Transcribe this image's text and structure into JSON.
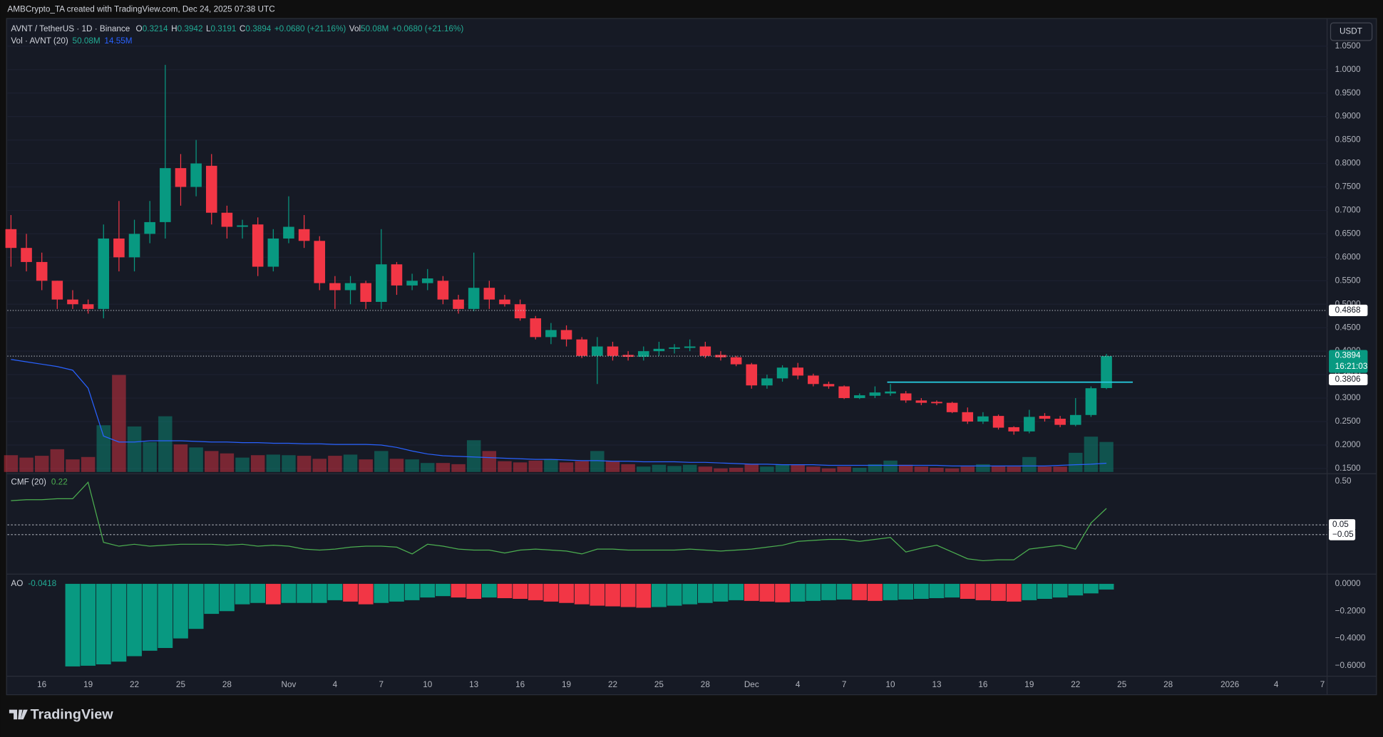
{
  "header": "AMBCrypto_TA created with TradingView.com, Dec 24, 2025 07:38 UTC",
  "brand": "TradingView",
  "currency_button": "USDT",
  "chart_data": {
    "type": "candlestick",
    "title": "AVNT / TetherUS · 1D · Binance",
    "ohlc_letters": [
      "O",
      "H",
      "L",
      "C"
    ],
    "change_label": "+0.0680 (+21.16%)",
    "vol_prefix": "Vol",
    "up_color": "#089981",
    "down_color": "#f23645",
    "x": [
      "2025-10-14",
      "2025-10-15",
      "2025-10-16",
      "2025-10-17",
      "2025-10-18",
      "2025-10-19",
      "2025-10-20",
      "2025-10-21",
      "2025-10-22",
      "2025-10-23",
      "2025-10-24",
      "2025-10-25",
      "2025-10-26",
      "2025-10-27",
      "2025-10-28",
      "2025-10-29",
      "2025-10-30",
      "2025-10-31",
      "2025-11-01",
      "2025-11-02",
      "2025-11-03",
      "2025-11-04",
      "2025-11-05",
      "2025-11-06",
      "2025-11-07",
      "2025-11-08",
      "2025-11-09",
      "2025-11-10",
      "2025-11-11",
      "2025-11-12",
      "2025-11-13",
      "2025-11-14",
      "2025-11-15",
      "2025-11-16",
      "2025-11-17",
      "2025-11-18",
      "2025-11-19",
      "2025-11-20",
      "2025-11-21",
      "2025-11-22",
      "2025-11-23",
      "2025-11-24",
      "2025-11-25",
      "2025-11-26",
      "2025-11-27",
      "2025-11-28",
      "2025-11-29",
      "2025-11-30",
      "2025-12-01",
      "2025-12-02",
      "2025-12-03",
      "2025-12-04",
      "2025-12-05",
      "2025-12-06",
      "2025-12-07",
      "2025-12-08",
      "2025-12-09",
      "2025-12-10",
      "2025-12-11",
      "2025-12-12",
      "2025-12-13",
      "2025-12-14",
      "2025-12-15",
      "2025-12-16",
      "2025-12-17",
      "2025-12-18",
      "2025-12-19",
      "2025-12-20",
      "2025-12-21",
      "2025-12-22",
      "2025-12-23",
      "2025-12-24"
    ],
    "open": [
      0.66,
      0.62,
      0.59,
      0.55,
      0.51,
      0.5,
      0.49,
      0.64,
      0.6,
      0.65,
      0.675,
      0.79,
      0.75,
      0.795,
      0.695,
      0.665,
      0.67,
      0.58,
      0.64,
      0.66,
      0.635,
      0.545,
      0.53,
      0.545,
      0.505,
      0.585,
      0.54,
      0.545,
      0.55,
      0.51,
      0.49,
      0.535,
      0.51,
      0.5,
      0.47,
      0.43,
      0.445,
      0.425,
      0.39,
      0.41,
      0.392,
      0.388,
      0.4,
      0.405,
      0.407,
      0.41,
      0.392,
      0.387,
      0.372,
      0.327,
      0.342,
      0.365,
      0.348,
      0.33,
      0.325,
      0.3,
      0.305,
      0.31,
      0.31,
      0.295,
      0.292,
      0.29,
      0.27,
      0.25,
      0.262,
      0.238,
      0.229,
      0.262,
      0.256,
      0.243,
      0.264,
      0.3214
    ],
    "high": [
      0.69,
      0.65,
      0.61,
      0.55,
      0.53,
      0.51,
      0.67,
      0.72,
      0.68,
      0.72,
      1.01,
      0.82,
      0.85,
      0.82,
      0.71,
      0.68,
      0.685,
      0.66,
      0.73,
      0.69,
      0.645,
      0.56,
      0.56,
      0.55,
      0.66,
      0.59,
      0.565,
      0.575,
      0.56,
      0.52,
      0.61,
      0.55,
      0.52,
      0.51,
      0.475,
      0.46,
      0.455,
      0.43,
      0.43,
      0.42,
      0.4,
      0.41,
      0.42,
      0.415,
      0.425,
      0.42,
      0.4,
      0.39,
      0.375,
      0.35,
      0.37,
      0.375,
      0.352,
      0.335,
      0.327,
      0.31,
      0.325,
      0.33,
      0.315,
      0.3,
      0.295,
      0.292,
      0.28,
      0.27,
      0.265,
      0.24,
      0.275,
      0.268,
      0.262,
      0.3,
      0.325,
      0.3942
    ],
    "low": [
      0.58,
      0.57,
      0.53,
      0.49,
      0.49,
      0.48,
      0.47,
      0.57,
      0.57,
      0.63,
      0.64,
      0.71,
      0.73,
      0.67,
      0.64,
      0.64,
      0.56,
      0.57,
      0.63,
      0.62,
      0.53,
      0.49,
      0.5,
      0.49,
      0.49,
      0.52,
      0.53,
      0.53,
      0.5,
      0.48,
      0.485,
      0.49,
      0.495,
      0.465,
      0.425,
      0.415,
      0.41,
      0.385,
      0.33,
      0.38,
      0.38,
      0.38,
      0.39,
      0.395,
      0.4,
      0.385,
      0.38,
      0.368,
      0.32,
      0.32,
      0.335,
      0.34,
      0.325,
      0.32,
      0.298,
      0.298,
      0.3,
      0.305,
      0.29,
      0.285,
      0.285,
      0.268,
      0.245,
      0.245,
      0.233,
      0.222,
      0.225,
      0.25,
      0.238,
      0.24,
      0.26,
      0.3191
    ],
    "close": [
      0.62,
      0.59,
      0.55,
      0.51,
      0.5,
      0.49,
      0.64,
      0.6,
      0.65,
      0.675,
      0.79,
      0.75,
      0.8,
      0.695,
      0.665,
      0.668,
      0.58,
      0.64,
      0.665,
      0.635,
      0.545,
      0.53,
      0.545,
      0.505,
      0.585,
      0.54,
      0.55,
      0.555,
      0.51,
      0.49,
      0.535,
      0.51,
      0.5,
      0.47,
      0.43,
      0.445,
      0.425,
      0.39,
      0.41,
      0.39,
      0.388,
      0.4,
      0.405,
      0.408,
      0.41,
      0.39,
      0.387,
      0.372,
      0.327,
      0.342,
      0.365,
      0.348,
      0.33,
      0.325,
      0.3,
      0.306,
      0.312,
      0.314,
      0.295,
      0.29,
      0.289,
      0.27,
      0.25,
      0.261,
      0.237,
      0.229,
      0.26,
      0.256,
      0.243,
      0.264,
      0.321,
      0.3894
    ],
    "xlim": [
      "2025-10-13T18:30Z",
      "2026-01-07T07:12Z"
    ],
    "xticks": [
      {
        "value": "2025-10-16",
        "label": "16"
      },
      {
        "value": "2025-10-19",
        "label": "19"
      },
      {
        "value": "2025-10-22",
        "label": "22"
      },
      {
        "value": "2025-10-25",
        "label": "25"
      },
      {
        "value": "2025-10-28",
        "label": "28"
      },
      {
        "value": "2025-11-01",
        "label": "Nov"
      },
      {
        "value": "2025-11-04",
        "label": "4"
      },
      {
        "value": "2025-11-07",
        "label": "7"
      },
      {
        "value": "2025-11-10",
        "label": "10"
      },
      {
        "value": "2025-11-13",
        "label": "13"
      },
      {
        "value": "2025-11-16",
        "label": "16"
      },
      {
        "value": "2025-11-19",
        "label": "19"
      },
      {
        "value": "2025-11-22",
        "label": "22"
      },
      {
        "value": "2025-11-25",
        "label": "25"
      },
      {
        "value": "2025-11-28",
        "label": "28"
      },
      {
        "value": "2025-12-01",
        "label": "Dec"
      },
      {
        "value": "2025-12-04",
        "label": "4"
      },
      {
        "value": "2025-12-07",
        "label": "7"
      },
      {
        "value": "2025-12-10",
        "label": "10"
      },
      {
        "value": "2025-12-13",
        "label": "13"
      },
      {
        "value": "2025-12-16",
        "label": "16"
      },
      {
        "value": "2025-12-19",
        "label": "19"
      },
      {
        "value": "2025-12-22",
        "label": "22"
      },
      {
        "value": "2025-12-25",
        "label": "25"
      },
      {
        "value": "2025-12-28",
        "label": "28"
      },
      {
        "value": "2026-01-01",
        "label": "2026"
      },
      {
        "value": "2026-01-04",
        "label": "4"
      },
      {
        "value": "2026-01-07",
        "label": "7"
      }
    ],
    "ylim": [
      0.1426,
      1.107
    ],
    "yticks": [
      {
        "value": 1.05,
        "label": "1.0500"
      },
      {
        "value": 1.0,
        "label": "1.0000"
      },
      {
        "value": 0.95,
        "label": "0.9500"
      },
      {
        "value": 0.9,
        "label": "0.9000"
      },
      {
        "value": 0.85,
        "label": "0.8500"
      },
      {
        "value": 0.8,
        "label": "0.8000"
      },
      {
        "value": 0.75,
        "label": "0.7500"
      },
      {
        "value": 0.7,
        "label": "0.7000"
      },
      {
        "value": 0.65,
        "label": "0.6500"
      },
      {
        "value": 0.6,
        "label": "0.6000"
      },
      {
        "value": 0.55,
        "label": "0.5500"
      },
      {
        "value": 0.5,
        "label": "0.5000"
      },
      {
        "value": 0.45,
        "label": "0.4500"
      },
      {
        "value": 0.4,
        "label": "0.4000"
      },
      {
        "value": 0.35,
        "label": "0.3500"
      },
      {
        "value": 0.3,
        "label": "0.3000"
      },
      {
        "value": 0.25,
        "label": "0.2500"
      },
      {
        "value": 0.2,
        "label": "0.2000"
      },
      {
        "value": 0.15,
        "label": "0.1500"
      }
    ],
    "grid": true,
    "price_lines": [
      {
        "value": 0.4868,
        "color": "#ffffff",
        "line": true
      },
      {
        "value": 0.3894,
        "sublabel": "16:21:03",
        "color": "#089981",
        "line": true
      },
      {
        "value": 0.3806,
        "color": "#ffffff",
        "line": false
      }
    ],
    "drawing": {
      "value": 0.334,
      "x": [
        "2025-12-09T19:00Z",
        "2025-12-25T17:00Z"
      ],
      "color": "#26c6da"
    },
    "volume": {
      "name": "Vol · AVNT (20)",
      "value_label": "50.08M",
      "ma_label": "14.55M",
      "ma_color": "#2962ff",
      "ylim": [
        0,
        350
      ],
      "values": [
        28,
        24,
        27,
        38,
        21,
        25,
        78,
        162,
        76,
        50,
        93,
        46,
        41,
        35,
        31,
        24,
        28,
        29,
        28,
        27,
        22,
        27,
        29,
        21,
        35,
        22,
        21,
        15,
        15,
        13,
        53,
        35,
        18,
        16,
        19,
        21,
        16,
        18,
        35,
        18,
        13,
        9,
        12,
        10,
        12,
        9,
        6,
        7,
        13,
        9,
        12,
        12,
        9,
        6,
        9,
        7,
        13,
        19,
        12,
        9,
        7,
        6,
        9,
        13,
        10,
        9,
        25,
        9,
        9,
        32,
        59,
        50.08
      ],
      "ma": [
        188,
        184,
        180,
        176,
        170,
        140,
        60,
        50,
        50,
        52,
        52,
        52,
        51,
        50,
        50,
        49,
        49,
        48,
        48,
        47,
        47,
        46,
        46,
        46,
        45,
        41,
        35,
        30,
        27,
        26,
        25,
        24,
        23,
        22,
        21,
        21,
        20,
        19,
        19,
        18,
        18,
        17,
        17,
        17,
        16,
        16,
        15,
        14,
        13,
        13,
        12,
        12,
        12,
        11,
        11,
        11,
        11,
        11,
        11,
        11,
        11,
        10,
        10,
        10,
        10,
        10,
        10,
        10,
        11,
        12,
        13,
        14.55
      ]
    },
    "cmf": {
      "name": "CMF (20)",
      "color": "#4caf50",
      "ylim": [
        -0.44,
        0.56
      ],
      "yticks": [
        {
          "value": 0.5,
          "label": "0.50"
        }
      ],
      "levels": [
        {
          "value": 0.05,
          "label": "0.05"
        },
        {
          "value": -0.05,
          "label": "−0.05"
        }
      ],
      "values": [
        0.3,
        0.31,
        0.31,
        0.32,
        0.32,
        0.49,
        -0.13,
        -0.17,
        -0.15,
        -0.17,
        -0.16,
        -0.15,
        -0.15,
        -0.15,
        -0.16,
        -0.15,
        -0.17,
        -0.16,
        -0.17,
        -0.2,
        -0.21,
        -0.2,
        -0.18,
        -0.17,
        -0.17,
        -0.18,
        -0.25,
        -0.15,
        -0.17,
        -0.2,
        -0.21,
        -0.21,
        -0.24,
        -0.21,
        -0.2,
        -0.21,
        -0.22,
        -0.25,
        -0.2,
        -0.2,
        -0.21,
        -0.21,
        -0.21,
        -0.21,
        -0.2,
        -0.21,
        -0.22,
        -0.21,
        -0.2,
        -0.18,
        -0.16,
        -0.12,
        -0.11,
        -0.1,
        -0.1,
        -0.12,
        -0.1,
        -0.08,
        -0.23,
        -0.19,
        -0.16,
        -0.23,
        -0.3,
        -0.32,
        -0.31,
        -0.31,
        -0.2,
        -0.18,
        -0.16,
        -0.2,
        0.07,
        0.22
      ]
    },
    "ao": {
      "name": "AO",
      "ylim": [
        -0.677,
        0.052
      ],
      "yticks": [
        {
          "value": 0,
          "label": "0.0000"
        },
        {
          "value": -0.2,
          "label": "−0.2000"
        },
        {
          "value": -0.4,
          "label": "−0.4000"
        },
        {
          "value": -0.6,
          "label": "−0.6000"
        }
      ],
      "values": [
        null,
        null,
        null,
        null,
        -0.605,
        -0.6,
        -0.59,
        -0.57,
        -0.53,
        -0.49,
        -0.47,
        -0.4,
        -0.33,
        -0.22,
        -0.2,
        -0.15,
        -0.14,
        -0.15,
        -0.14,
        -0.14,
        -0.14,
        -0.12,
        -0.13,
        -0.15,
        -0.14,
        -0.13,
        -0.12,
        -0.1,
        -0.09,
        -0.1,
        -0.11,
        -0.1,
        -0.105,
        -0.11,
        -0.12,
        -0.13,
        -0.14,
        -0.15,
        -0.16,
        -0.165,
        -0.17,
        -0.175,
        -0.17,
        -0.16,
        -0.15,
        -0.14,
        -0.13,
        -0.12,
        -0.125,
        -0.13,
        -0.135,
        -0.13,
        -0.125,
        -0.12,
        -0.115,
        -0.12,
        -0.125,
        -0.12,
        -0.115,
        -0.11,
        -0.105,
        -0.1,
        -0.11,
        -0.12,
        -0.125,
        -0.13,
        -0.12,
        -0.11,
        -0.1,
        -0.085,
        -0.07,
        -0.0418
      ]
    }
  }
}
